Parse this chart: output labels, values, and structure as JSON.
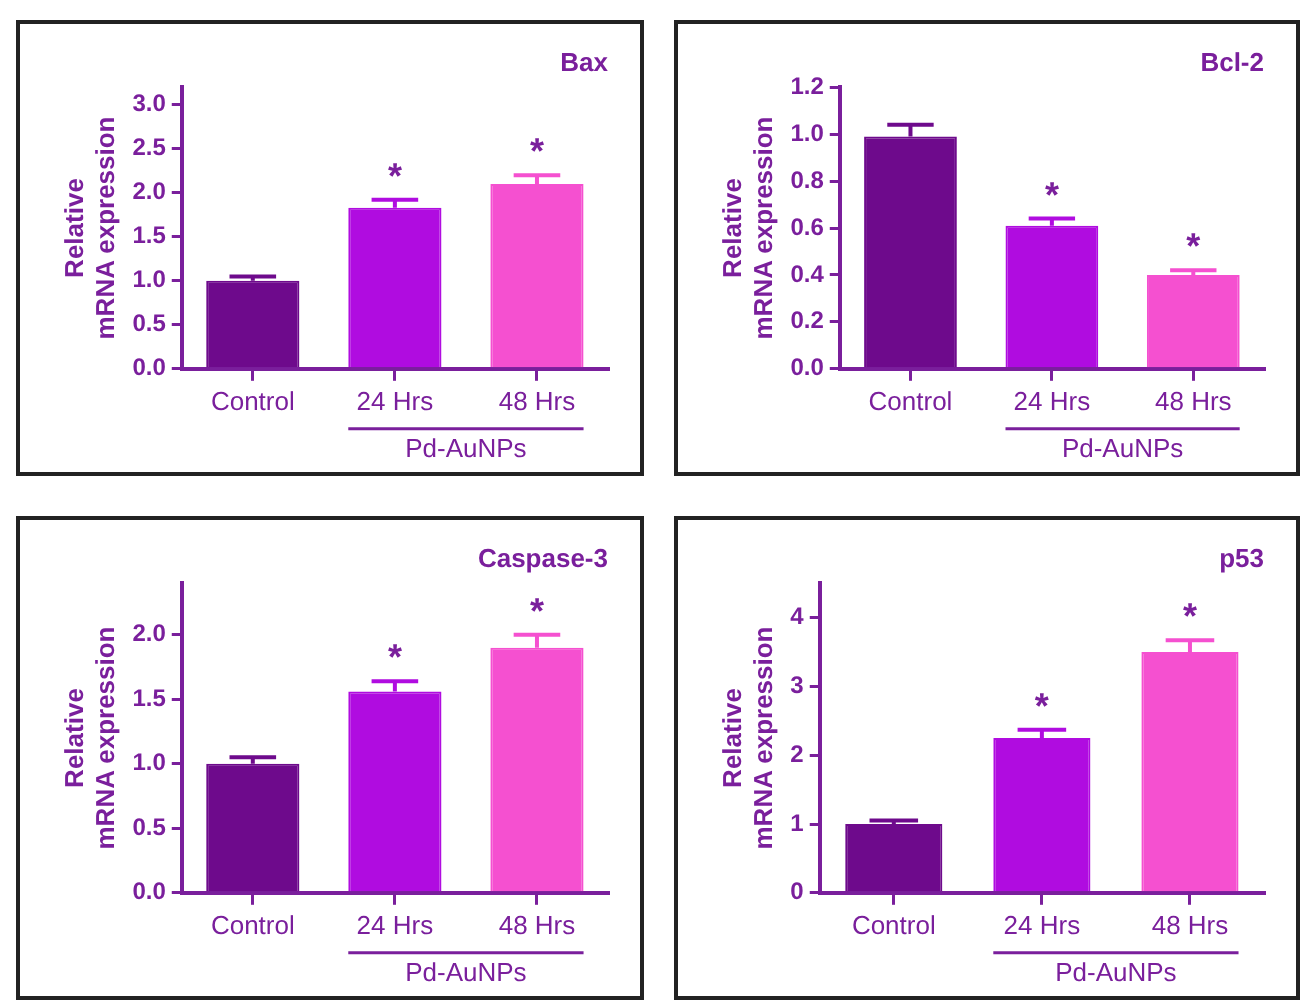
{
  "chart_data": [
    {
      "type": "bar",
      "title": "Bax",
      "ylabel": "Relative mRNA expression",
      "categories": [
        "Control",
        "24 Hrs",
        "48 Hrs"
      ],
      "values": [
        1.0,
        1.83,
        2.1
      ],
      "colors": [
        "#6e0a8c",
        "#b00ce0",
        "#f550d0"
      ],
      "errors": [
        [
          1.0,
          1.05
        ],
        [
          1.83,
          1.92
        ],
        [
          2.1,
          2.2
        ]
      ],
      "ylim": [
        0,
        3.2
      ],
      "yticks": [
        {
          "value": 0,
          "label": "0.0"
        },
        0.5,
        {
          "value": 1,
          "label": "1.0"
        },
        1.5,
        {
          "value": 2,
          "label": "2.0"
        },
        2.5,
        {
          "value": 3,
          "label": "3.0"
        }
      ],
      "value_labels": [
        null,
        "*",
        "*"
      ],
      "annotations": [
        "Pd-AuNPs"
      ]
    },
    {
      "type": "bar",
      "title": "Bcl-2",
      "ylabel": "Relative mRNA expression",
      "categories": [
        "Control",
        "24 Hrs",
        "48 Hrs"
      ],
      "values": [
        0.99,
        0.61,
        0.4
      ],
      "colors": [
        "#6e0a8c",
        "#b00ce0",
        "#f550d0"
      ],
      "errors": [
        [
          0.99,
          1.04
        ],
        [
          0.61,
          0.64
        ],
        [
          0.4,
          0.42
        ]
      ],
      "ylim": [
        0,
        1.2
      ],
      "yticks": [
        {
          "value": 0,
          "label": "0.0"
        },
        0.2,
        0.4,
        0.6,
        0.8,
        {
          "value": 1,
          "label": "1.0"
        },
        1.2
      ],
      "value_labels": [
        null,
        "*",
        "*"
      ],
      "annotations": [
        "Pd-AuNPs"
      ]
    },
    {
      "type": "bar",
      "title": "Caspase-3",
      "ylabel": "Relative mRNA expression",
      "categories": [
        "Control",
        "24 Hrs",
        "48 Hrs"
      ],
      "values": [
        1.0,
        1.56,
        1.9
      ],
      "colors": [
        "#6e0a8c",
        "#b00ce0",
        "#f550d0"
      ],
      "errors": [
        [
          1.0,
          1.05
        ],
        [
          1.56,
          1.64
        ],
        [
          1.9,
          2.0
        ]
      ],
      "ylim": [
        0,
        2.4
      ],
      "yticks": [
        {
          "value": 0,
          "label": "0.0"
        },
        0.5,
        {
          "value": 1,
          "label": "1.0"
        },
        1.5,
        {
          "value": 2,
          "label": "2.0"
        }
      ],
      "value_labels": [
        null,
        "*",
        "*"
      ],
      "annotations": [
        "Pd-AuNPs"
      ]
    },
    {
      "type": "bar",
      "title": "p53",
      "ylabel": "Relative mRNA expression",
      "categories": [
        "Control",
        "24 Hrs",
        "48 Hrs"
      ],
      "values": [
        1.0,
        2.25,
        3.5
      ],
      "colors": [
        "#6e0a8c",
        "#b00ce0",
        "#f550d0"
      ],
      "errors": [
        [
          1.0,
          1.05
        ],
        [
          2.25,
          2.37
        ],
        [
          3.5,
          3.67
        ]
      ],
      "ylim": [
        0,
        4.5
      ],
      "yticks": [
        0,
        1,
        2,
        3,
        4
      ],
      "value_labels": [
        null,
        "*",
        "*"
      ],
      "annotations": [
        "Pd-AuNPs"
      ]
    }
  ]
}
